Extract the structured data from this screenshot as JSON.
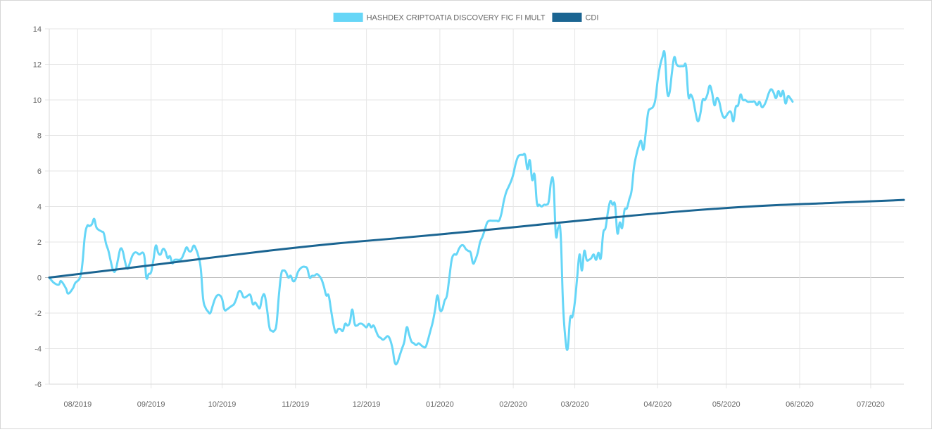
{
  "chart_data": {
    "type": "line",
    "title": "",
    "xlabel": "",
    "ylabel": "",
    "ylim": [
      -6,
      14
    ],
    "y_ticks": [
      -6,
      -4,
      -2,
      0,
      2,
      4,
      6,
      8,
      10,
      12,
      14
    ],
    "x_tick_labels": [
      "08/2019",
      "09/2019",
      "10/2019",
      "11/2019",
      "12/2019",
      "01/2020",
      "02/2020",
      "03/2020",
      "04/2020",
      "05/2020",
      "06/2020",
      "07/2020"
    ],
    "x_range_days": [
      0,
      361
    ],
    "x_tick_days": [
      12,
      43,
      73,
      104,
      134,
      165,
      196,
      222,
      257,
      286,
      317,
      347
    ],
    "grid": true,
    "legend_position": "top-center",
    "series": [
      {
        "name": "HASHDEX CRIPTOATIA DISCOVERY FIC FI MULT",
        "color": "#66d6f7",
        "points": [
          [
            0,
            0.0
          ],
          [
            2,
            -0.3
          ],
          [
            4,
            -0.4
          ],
          [
            5,
            -0.2
          ],
          [
            7,
            -0.6
          ],
          [
            8,
            -0.9
          ],
          [
            10,
            -0.6
          ],
          [
            11,
            -0.3
          ],
          [
            13,
            0.0
          ],
          [
            14,
            0.8
          ],
          [
            15,
            2.3
          ],
          [
            16,
            2.9
          ],
          [
            17,
            2.9
          ],
          [
            18,
            3.0
          ],
          [
            19,
            3.3
          ],
          [
            20,
            2.8
          ],
          [
            22,
            2.6
          ],
          [
            23,
            2.5
          ],
          [
            24,
            1.9
          ],
          [
            25,
            1.5
          ],
          [
            26,
            0.9
          ],
          [
            27,
            0.4
          ],
          [
            28,
            0.4
          ],
          [
            29,
            1.0
          ],
          [
            30,
            1.6
          ],
          [
            31,
            1.5
          ],
          [
            32,
            0.9
          ],
          [
            33,
            0.5
          ],
          [
            34,
            0.8
          ],
          [
            35,
            1.2
          ],
          [
            36,
            1.4
          ],
          [
            37,
            1.4
          ],
          [
            38,
            1.3
          ],
          [
            40,
            1.3
          ],
          [
            41,
            0.0
          ],
          [
            42,
            0.2
          ],
          [
            43,
            0.3
          ],
          [
            44,
            1.0
          ],
          [
            45,
            1.8
          ],
          [
            46,
            1.4
          ],
          [
            47,
            1.3
          ],
          [
            48,
            1.6
          ],
          [
            49,
            1.5
          ],
          [
            50,
            1.1
          ],
          [
            51,
            1.2
          ],
          [
            52,
            0.8
          ],
          [
            53,
            1.0
          ],
          [
            55,
            1.0
          ],
          [
            56,
            1.1
          ],
          [
            57,
            1.4
          ],
          [
            58,
            1.7
          ],
          [
            59,
            1.5
          ],
          [
            60,
            1.5
          ],
          [
            61,
            1.8
          ],
          [
            62,
            1.6
          ],
          [
            63,
            1.2
          ],
          [
            64,
            0.5
          ],
          [
            65,
            -1.2
          ],
          [
            66,
            -1.7
          ],
          [
            67,
            -1.9
          ],
          [
            68,
            -2.0
          ],
          [
            69,
            -1.6
          ],
          [
            70,
            -1.2
          ],
          [
            71,
            -1.0
          ],
          [
            72,
            -1.0
          ],
          [
            73,
            -1.2
          ],
          [
            74,
            -1.8
          ],
          [
            75,
            -1.8
          ],
          [
            76,
            -1.7
          ],
          [
            77,
            -1.6
          ],
          [
            78,
            -1.5
          ],
          [
            79,
            -1.2
          ],
          [
            80,
            -0.8
          ],
          [
            81,
            -0.8
          ],
          [
            82,
            -1.1
          ],
          [
            83,
            -1.1
          ],
          [
            84,
            -1.0
          ],
          [
            85,
            -1.0
          ],
          [
            86,
            -1.5
          ],
          [
            87,
            -1.4
          ],
          [
            88,
            -1.6
          ],
          [
            89,
            -1.7
          ],
          [
            90,
            -1.1
          ],
          [
            91,
            -1.0
          ],
          [
            92,
            -1.8
          ],
          [
            93,
            -2.8
          ],
          [
            94,
            -3.0
          ],
          [
            95,
            -3.0
          ],
          [
            96,
            -2.6
          ],
          [
            97,
            -1.0
          ],
          [
            98,
            0.2
          ],
          [
            99,
            0.4
          ],
          [
            100,
            0.3
          ],
          [
            101,
            0.0
          ],
          [
            102,
            0.1
          ],
          [
            103,
            -0.2
          ],
          [
            104,
            -0.1
          ],
          [
            105,
            0.3
          ],
          [
            106,
            0.5
          ],
          [
            107,
            0.6
          ],
          [
            108,
            0.6
          ],
          [
            109,
            0.5
          ],
          [
            110,
            0.0
          ],
          [
            111,
            0.1
          ],
          [
            112,
            0.1
          ],
          [
            113,
            0.2
          ],
          [
            114,
            0.1
          ],
          [
            115,
            -0.1
          ],
          [
            116,
            -0.5
          ],
          [
            117,
            -1.0
          ],
          [
            118,
            -1.0
          ],
          [
            119,
            -1.8
          ],
          [
            120,
            -2.6
          ],
          [
            121,
            -3.1
          ],
          [
            122,
            -2.9
          ],
          [
            123,
            -2.9
          ],
          [
            124,
            -3.0
          ],
          [
            125,
            -2.6
          ],
          [
            126,
            -2.7
          ],
          [
            127,
            -2.5
          ],
          [
            128,
            -1.8
          ],
          [
            129,
            -2.6
          ],
          [
            130,
            -2.7
          ],
          [
            131,
            -2.6
          ],
          [
            132,
            -2.6
          ],
          [
            133,
            -2.7
          ],
          [
            134,
            -2.8
          ],
          [
            135,
            -2.6
          ],
          [
            136,
            -2.8
          ],
          [
            137,
            -2.7
          ],
          [
            138,
            -3.0
          ],
          [
            139,
            -3.3
          ],
          [
            140,
            -3.4
          ],
          [
            141,
            -3.5
          ],
          [
            142,
            -3.4
          ],
          [
            143,
            -3.3
          ],
          [
            144,
            -3.5
          ],
          [
            145,
            -4.0
          ],
          [
            146,
            -4.8
          ],
          [
            147,
            -4.8
          ],
          [
            148,
            -4.4
          ],
          [
            149,
            -4.0
          ],
          [
            150,
            -3.6
          ],
          [
            151,
            -2.8
          ],
          [
            152,
            -3.2
          ],
          [
            153,
            -3.6
          ],
          [
            154,
            -3.7
          ],
          [
            155,
            -3.8
          ],
          [
            156,
            -3.7
          ],
          [
            157,
            -3.8
          ],
          [
            158,
            -3.9
          ],
          [
            159,
            -3.9
          ],
          [
            160,
            -3.5
          ],
          [
            161,
            -3.0
          ],
          [
            162,
            -2.5
          ],
          [
            163,
            -1.8
          ],
          [
            164,
            -1.0
          ],
          [
            165,
            -1.8
          ],
          [
            166,
            -1.8
          ],
          [
            167,
            -1.3
          ],
          [
            168,
            -1.0
          ],
          [
            169,
            0.0
          ],
          [
            170,
            1.0
          ],
          [
            171,
            1.3
          ],
          [
            172,
            1.3
          ],
          [
            173,
            1.6
          ],
          [
            174,
            1.8
          ],
          [
            175,
            1.8
          ],
          [
            176,
            1.6
          ],
          [
            177,
            1.5
          ],
          [
            178,
            1.4
          ],
          [
            179,
            0.8
          ],
          [
            180,
            1.0
          ],
          [
            181,
            1.4
          ],
          [
            182,
            2.0
          ],
          [
            183,
            2.3
          ],
          [
            184,
            2.7
          ],
          [
            185,
            3.1
          ],
          [
            186,
            3.2
          ],
          [
            187,
            3.2
          ],
          [
            188,
            3.2
          ],
          [
            189,
            3.2
          ],
          [
            190,
            3.2
          ],
          [
            191,
            3.6
          ],
          [
            192,
            4.3
          ],
          [
            193,
            4.8
          ],
          [
            194,
            5.1
          ],
          [
            195,
            5.4
          ],
          [
            196,
            5.8
          ],
          [
            197,
            6.4
          ],
          [
            198,
            6.8
          ],
          [
            199,
            6.9
          ],
          [
            200,
            6.9
          ],
          [
            201,
            6.9
          ],
          [
            202,
            6.1
          ],
          [
            203,
            6.6
          ],
          [
            204,
            5.5
          ],
          [
            205,
            5.8
          ],
          [
            206,
            4.2
          ],
          [
            207,
            4.1
          ],
          [
            208,
            4.0
          ],
          [
            209,
            4.1
          ],
          [
            210,
            4.1
          ],
          [
            211,
            4.3
          ],
          [
            212,
            5.4
          ],
          [
            213,
            5.3
          ],
          [
            214,
            2.4
          ],
          [
            215,
            2.8
          ],
          [
            216,
            2.5
          ],
          [
            217,
            -1.4
          ],
          [
            218,
            -3.4
          ],
          [
            219,
            -4.0
          ],
          [
            220,
            -2.3
          ],
          [
            221,
            -2.2
          ],
          [
            222,
            -1.4
          ],
          [
            223,
            0.0
          ],
          [
            224,
            1.3
          ],
          [
            225,
            0.4
          ],
          [
            226,
            1.5
          ],
          [
            227,
            1.0
          ],
          [
            228,
            1.0
          ],
          [
            229,
            1.1
          ],
          [
            230,
            1.3
          ],
          [
            231,
            1.0
          ],
          [
            232,
            1.4
          ],
          [
            233,
            1.1
          ],
          [
            234,
            2.5
          ],
          [
            235,
            2.8
          ],
          [
            236,
            3.7
          ],
          [
            237,
            4.3
          ],
          [
            238,
            4.1
          ],
          [
            239,
            4.1
          ],
          [
            240,
            2.5
          ],
          [
            241,
            3.1
          ],
          [
            242,
            2.8
          ],
          [
            243,
            3.8
          ],
          [
            244,
            3.9
          ],
          [
            245,
            4.4
          ],
          [
            246,
            4.9
          ],
          [
            247,
            6.2
          ],
          [
            248,
            6.9
          ],
          [
            249,
            7.4
          ],
          [
            250,
            7.7
          ],
          [
            251,
            7.2
          ],
          [
            252,
            8.2
          ],
          [
            253,
            9.3
          ],
          [
            254,
            9.5
          ],
          [
            255,
            9.6
          ],
          [
            256,
            10.0
          ],
          [
            257,
            11.1
          ],
          [
            258,
            11.9
          ],
          [
            259,
            12.4
          ],
          [
            260,
            12.6
          ],
          [
            261,
            10.5
          ],
          [
            262,
            10.4
          ],
          [
            263,
            11.5
          ],
          [
            264,
            12.4
          ],
          [
            265,
            12.0
          ],
          [
            266,
            11.9
          ],
          [
            267,
            11.9
          ],
          [
            268,
            11.9
          ],
          [
            269,
            11.9
          ],
          [
            270,
            10.2
          ],
          [
            271,
            10.3
          ],
          [
            272,
            10.0
          ],
          [
            273,
            9.3
          ],
          [
            274,
            8.8
          ],
          [
            275,
            9.2
          ],
          [
            276,
            10.0
          ],
          [
            277,
            10.0
          ],
          [
            278,
            10.3
          ],
          [
            279,
            10.8
          ],
          [
            280,
            10.4
          ],
          [
            281,
            9.7
          ],
          [
            282,
            10.1
          ],
          [
            283,
            9.9
          ],
          [
            284,
            9.3
          ],
          [
            285,
            9.0
          ],
          [
            286,
            9.1
          ],
          [
            287,
            9.3
          ],
          [
            288,
            9.3
          ],
          [
            289,
            8.8
          ],
          [
            290,
            9.6
          ],
          [
            291,
            9.7
          ],
          [
            292,
            10.3
          ],
          [
            293,
            10.0
          ],
          [
            294,
            10.0
          ],
          [
            295,
            9.9
          ],
          [
            296,
            9.9
          ],
          [
            297,
            9.9
          ],
          [
            298,
            9.9
          ],
          [
            299,
            9.7
          ],
          [
            300,
            9.9
          ],
          [
            301,
            9.6
          ],
          [
            302,
            9.7
          ],
          [
            303,
            10.0
          ],
          [
            304,
            10.4
          ],
          [
            305,
            10.6
          ],
          [
            306,
            10.4
          ],
          [
            307,
            10.1
          ],
          [
            308,
            10.5
          ],
          [
            309,
            10.2
          ],
          [
            310,
            10.5
          ],
          [
            311,
            9.8
          ],
          [
            312,
            10.2
          ],
          [
            313,
            10.1
          ],
          [
            314,
            9.9
          ]
        ]
      },
      {
        "name": "CDI",
        "color": "#1b6592",
        "points": [
          [
            0,
            0.0
          ],
          [
            30,
            0.48
          ],
          [
            60,
            0.98
          ],
          [
            90,
            1.47
          ],
          [
            120,
            1.9
          ],
          [
            150,
            2.25
          ],
          [
            180,
            2.62
          ],
          [
            210,
            3.02
          ],
          [
            240,
            3.41
          ],
          [
            270,
            3.76
          ],
          [
            300,
            4.03
          ],
          [
            330,
            4.2
          ],
          [
            361,
            4.37
          ]
        ]
      }
    ]
  }
}
